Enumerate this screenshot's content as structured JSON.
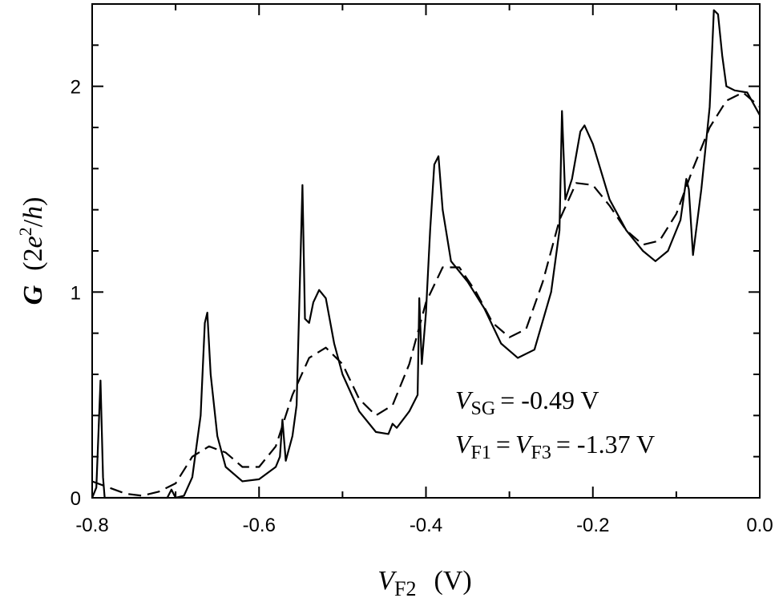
{
  "chart_data": {
    "type": "line",
    "xlabel": [
      "V",
      "F2",
      "(V)"
    ],
    "ylabel": [
      "G",
      "(2",
      "e",
      "2",
      "/",
      "h",
      ")"
    ],
    "annotations": [
      [
        "V",
        "SG",
        "= -0.49 V"
      ],
      [
        "V",
        "F1",
        "=",
        "V",
        "F3",
        "= -1.37 V"
      ]
    ],
    "xlim": [
      -0.8,
      0.0
    ],
    "ylim": [
      0,
      2.4
    ],
    "xticks": [
      -0.8,
      -0.6,
      -0.4,
      -0.2,
      {
        "value": 0,
        "label": "0.0"
      }
    ],
    "xminor": [
      -0.7,
      -0.5,
      -0.3,
      -0.1
    ],
    "yticks": [
      0,
      1,
      2
    ],
    "yminor": [
      0.2,
      0.4,
      0.6,
      0.8,
      1.2,
      1.4,
      1.6,
      1.8,
      2.2
    ],
    "series": [
      {
        "color": "#000000",
        "line_style": "solid",
        "x": [
          -0.8,
          -0.795,
          -0.79,
          -0.787,
          -0.785,
          -0.71,
          -0.705,
          -0.7,
          -0.69,
          -0.68,
          -0.67,
          -0.665,
          -0.662,
          -0.658,
          -0.65,
          -0.64,
          -0.62,
          -0.6,
          -0.58,
          -0.575,
          -0.572,
          -0.568,
          -0.56,
          -0.555,
          -0.548,
          -0.545,
          -0.54,
          -0.535,
          -0.528,
          -0.52,
          -0.51,
          -0.5,
          -0.48,
          -0.46,
          -0.445,
          -0.44,
          -0.435,
          -0.42,
          -0.41,
          -0.408,
          -0.405,
          -0.4,
          -0.395,
          -0.39,
          -0.385,
          -0.38,
          -0.37,
          -0.35,
          -0.33,
          -0.31,
          -0.29,
          -0.27,
          -0.25,
          -0.24,
          -0.237,
          -0.233,
          -0.225,
          -0.215,
          -0.21,
          -0.2,
          -0.18,
          -0.16,
          -0.14,
          -0.125,
          -0.11,
          -0.095,
          -0.088,
          -0.085,
          -0.08,
          -0.07,
          -0.06,
          -0.055,
          -0.05,
          -0.045,
          -0.04,
          -0.03,
          -0.015,
          0.0
        ],
        "values": [
          0.0,
          0.05,
          0.57,
          0.1,
          0.0,
          0.0,
          0.04,
          0.0,
          0.01,
          0.1,
          0.4,
          0.85,
          0.9,
          0.6,
          0.3,
          0.15,
          0.08,
          0.09,
          0.15,
          0.2,
          0.38,
          0.18,
          0.3,
          0.45,
          1.52,
          0.87,
          0.85,
          0.95,
          1.01,
          0.97,
          0.75,
          0.6,
          0.42,
          0.32,
          0.31,
          0.36,
          0.34,
          0.42,
          0.5,
          0.97,
          0.65,
          0.9,
          1.3,
          1.62,
          1.66,
          1.4,
          1.15,
          1.05,
          0.92,
          0.75,
          0.68,
          0.72,
          1.0,
          1.3,
          1.88,
          1.45,
          1.55,
          1.78,
          1.81,
          1.72,
          1.45,
          1.3,
          1.2,
          1.15,
          1.2,
          1.35,
          1.55,
          1.5,
          1.18,
          1.5,
          1.9,
          2.37,
          2.35,
          2.15,
          2.0,
          1.98,
          1.97,
          1.86
        ]
      },
      {
        "color": "#000000",
        "line_style": "dashed",
        "x": [
          -0.8,
          -0.78,
          -0.76,
          -0.74,
          -0.72,
          -0.7,
          -0.68,
          -0.66,
          -0.64,
          -0.62,
          -0.6,
          -0.58,
          -0.56,
          -0.54,
          -0.52,
          -0.5,
          -0.48,
          -0.46,
          -0.44,
          -0.42,
          -0.4,
          -0.38,
          -0.36,
          -0.34,
          -0.32,
          -0.3,
          -0.28,
          -0.26,
          -0.24,
          -0.22,
          -0.2,
          -0.18,
          -0.16,
          -0.14,
          -0.12,
          -0.1,
          -0.08,
          -0.06,
          -0.04,
          -0.02,
          0.0
        ],
        "values": [
          0.08,
          0.05,
          0.02,
          0.01,
          0.03,
          0.07,
          0.2,
          0.25,
          0.22,
          0.15,
          0.15,
          0.25,
          0.5,
          0.68,
          0.73,
          0.65,
          0.48,
          0.4,
          0.45,
          0.65,
          0.95,
          1.12,
          1.12,
          1.0,
          0.85,
          0.78,
          0.82,
          1.05,
          1.35,
          1.53,
          1.52,
          1.42,
          1.3,
          1.23,
          1.25,
          1.38,
          1.6,
          1.8,
          1.93,
          1.97,
          1.9
        ]
      }
    ]
  }
}
